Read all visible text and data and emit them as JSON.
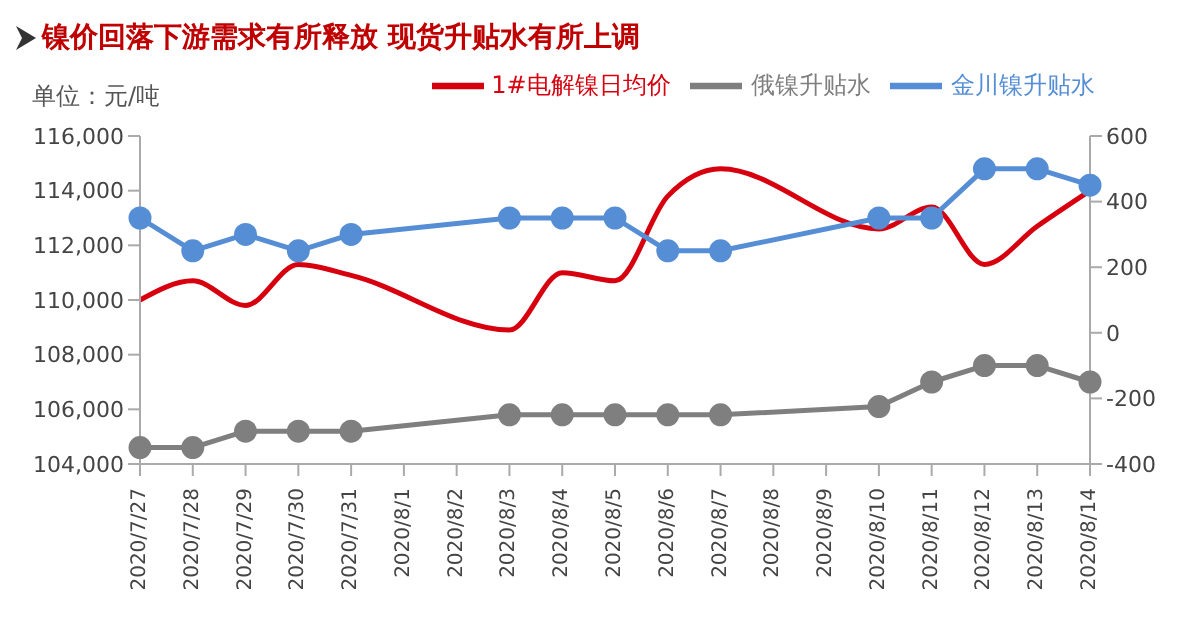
{
  "chart_data": {
    "type": "line",
    "title": "镍价回落下游需求有所释放 现货升贴水有所上调",
    "ylabel": "单位：元/吨",
    "categories": [
      "2020/7/27",
      "2020/7/28",
      "2020/7/29",
      "2020/7/30",
      "2020/7/31",
      "2020/8/1",
      "2020/8/2",
      "2020/8/3",
      "2020/8/4",
      "2020/8/5",
      "2020/8/6",
      "2020/8/7",
      "2020/8/8",
      "2020/8/9",
      "2020/8/10",
      "2020/8/11",
      "2020/8/12",
      "2020/8/13",
      "2020/8/14"
    ],
    "series": [
      {
        "name": "1#电解镍日均价",
        "color": "#d7000f",
        "marker": "none",
        "values": [
          110000,
          110700,
          109800,
          111300,
          110900,
          null,
          null,
          108900,
          111000,
          110700,
          113800,
          114800,
          null,
          null,
          112600,
          113400,
          111300,
          112700,
          114000
        ]
      },
      {
        "name": "俄镍升贴水",
        "color": "#7f7f7f",
        "marker": "circle",
        "axis": "y2",
        "values": [
          -350,
          -350,
          -300,
          -300,
          -300,
          null,
          null,
          -250,
          -250,
          -250,
          -250,
          -250,
          null,
          null,
          -225,
          -150,
          -100,
          -100,
          -150
        ]
      },
      {
        "name": "金川镍升贴水",
        "color": "#558ed5",
        "marker": "circle",
        "axis": "y2",
        "values": [
          350,
          250,
          300,
          250,
          300,
          null,
          null,
          350,
          350,
          350,
          250,
          250,
          null,
          null,
          350,
          350,
          500,
          500,
          450
        ]
      }
    ],
    "ylim": [
      104000,
      116000
    ],
    "yticks": [
      {
        "value": 104000,
        "label": "104,000"
      },
      {
        "value": 106000,
        "label": "106,000"
      },
      {
        "value": 108000,
        "label": "108,000"
      },
      {
        "value": 110000,
        "label": "110,000"
      },
      {
        "value": 112000,
        "label": "112,000"
      },
      {
        "value": 114000,
        "label": "114,000"
      },
      {
        "value": 116000,
        "label": "116,000"
      }
    ],
    "y2lim": [
      -400,
      600
    ],
    "y2ticks": [
      -400,
      -200,
      0,
      200,
      400,
      600
    ],
    "grid": false,
    "legend": "top"
  }
}
